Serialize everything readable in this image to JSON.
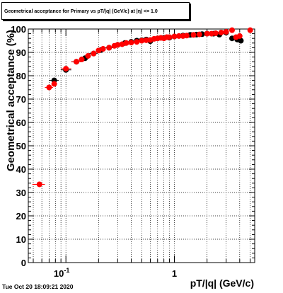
{
  "window": {
    "title_box": "Geometrical acceptance for Primary vs pT/|q| (GeV/c) at |η| <= 1.0",
    "timestamp": "Tue Oct 20 18:09:21 2020"
  },
  "chart_data": {
    "type": "scatter",
    "title": "Geometrical acceptance for Primary vs pT/|q| (GeV/c) at |η| <= 1.0",
    "xlabel": "pT/|q| (GeV/c)",
    "ylabel": "Geometrical acceptance (%)",
    "xscale": "log",
    "xlim": [
      0.045,
      5.5
    ],
    "ylim": [
      0,
      100
    ],
    "x_tick_labels": [
      {
        "value": 0.1,
        "base": "10",
        "exp": "-1"
      },
      {
        "value": 1,
        "base": "1",
        "exp": ""
      }
    ],
    "y_ticks": [
      0,
      10,
      20,
      30,
      40,
      50,
      60,
      70,
      80,
      90,
      100
    ],
    "grid": true,
    "series": [
      {
        "color": "#000000",
        "points": [
          [
            0.078,
            78
          ],
          [
            0.1,
            82.5
          ],
          [
            0.125,
            86
          ],
          [
            0.15,
            87.5
          ],
          [
            0.18,
            89.5
          ],
          [
            0.21,
            91
          ],
          [
            0.25,
            92
          ],
          [
            0.3,
            93.2
          ],
          [
            0.35,
            94
          ],
          [
            0.4,
            94.5
          ],
          [
            0.45,
            95
          ],
          [
            0.5,
            95.2
          ],
          [
            0.55,
            95.5
          ],
          [
            0.6,
            94.8
          ],
          [
            0.7,
            96
          ],
          [
            0.8,
            96.2
          ],
          [
            0.9,
            96.3
          ],
          [
            1.0,
            96.8
          ],
          [
            1.2,
            97.2
          ],
          [
            1.4,
            97.5
          ],
          [
            1.6,
            97.6
          ],
          [
            1.8,
            97.8
          ],
          [
            2.0,
            98
          ],
          [
            2.3,
            98
          ],
          [
            2.6,
            97.6
          ],
          [
            3.0,
            98.5
          ],
          [
            3.4,
            96
          ],
          [
            3.8,
            95.5
          ],
          [
            4.1,
            95
          ]
        ],
        "x_errors": [
          [
            0.07,
            0.086
          ],
          [
            0.09,
            0.112
          ],
          [
            0.112,
            0.138
          ],
          [
            0.138,
            0.163
          ],
          [
            0.163,
            0.196
          ],
          [
            0.196,
            0.23
          ],
          [
            0.23,
            0.275
          ],
          [
            0.275,
            0.325
          ],
          [
            0.325,
            0.375
          ]
        ]
      },
      {
        "color": "#ff0000",
        "points": [
          [
            0.057,
            33.5
          ],
          [
            0.07,
            75
          ],
          [
            0.078,
            76.5
          ],
          [
            0.1,
            83
          ],
          [
            0.125,
            86
          ],
          [
            0.14,
            87
          ],
          [
            0.16,
            88.5
          ],
          [
            0.18,
            89.5
          ],
          [
            0.2,
            90.8
          ],
          [
            0.22,
            91.5
          ],
          [
            0.25,
            92
          ],
          [
            0.28,
            92.8
          ],
          [
            0.3,
            93.2
          ],
          [
            0.33,
            93.5
          ],
          [
            0.36,
            94
          ],
          [
            0.4,
            94.2
          ],
          [
            0.45,
            94.5
          ],
          [
            0.5,
            95
          ],
          [
            0.55,
            95.2
          ],
          [
            0.6,
            95.3
          ],
          [
            0.65,
            95.8
          ],
          [
            0.7,
            96
          ],
          [
            0.75,
            96.2
          ],
          [
            0.8,
            96
          ],
          [
            0.85,
            96.5
          ],
          [
            0.9,
            96.5
          ],
          [
            1.0,
            96.8
          ],
          [
            1.1,
            97
          ],
          [
            1.2,
            97
          ],
          [
            1.3,
            97.2
          ],
          [
            1.5,
            97.5
          ],
          [
            1.7,
            97.7
          ],
          [
            2.0,
            98
          ],
          [
            2.2,
            98
          ],
          [
            2.4,
            98.2
          ],
          [
            2.7,
            98.5
          ],
          [
            3.0,
            98.8
          ],
          [
            3.4,
            99.5
          ],
          [
            3.7,
            96.5
          ],
          [
            4.0,
            97
          ],
          [
            5.0,
            99.5
          ]
        ],
        "x_errors": [
          [
            0.049,
            0.064
          ],
          [
            0.064,
            0.076
          ],
          [
            0.074,
            0.082
          ],
          [
            0.09,
            0.112
          ],
          [
            0.112,
            0.138
          ],
          [
            0.132,
            0.149
          ],
          [
            0.149,
            0.17
          ],
          [
            0.17,
            0.19
          ],
          [
            0.19,
            0.21
          ]
        ]
      }
    ]
  }
}
